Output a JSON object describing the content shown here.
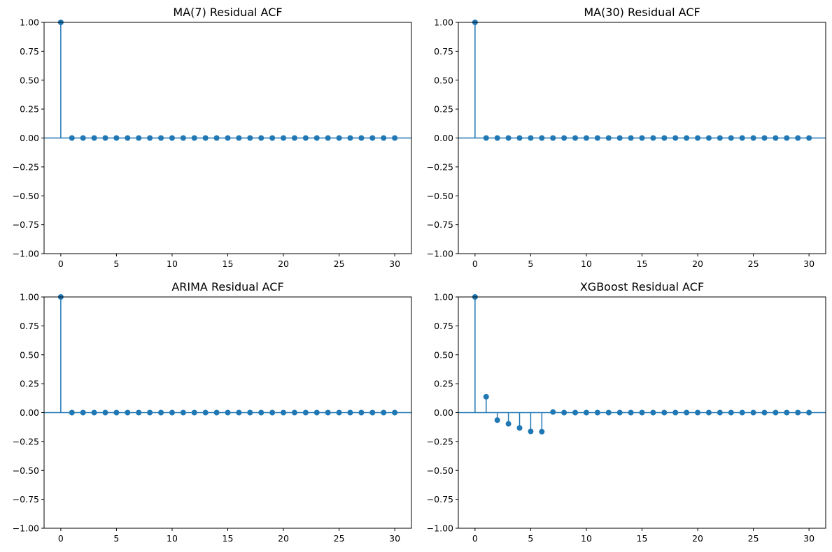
{
  "chart_data": [
    {
      "type": "stem",
      "title": "MA(7) Residual ACF",
      "xlabel": "",
      "ylabel": "",
      "x": [
        0,
        1,
        2,
        3,
        4,
        5,
        6,
        7,
        8,
        9,
        10,
        11,
        12,
        13,
        14,
        15,
        16,
        17,
        18,
        19,
        20,
        21,
        22,
        23,
        24,
        25,
        26,
        27,
        28,
        29,
        30
      ],
      "values": [
        1.0,
        0,
        0,
        0,
        0,
        0,
        0,
        0,
        0,
        0,
        0,
        0,
        0,
        0,
        0,
        0,
        0,
        0,
        0,
        0,
        0,
        0,
        0,
        0,
        0,
        0,
        0,
        0,
        0,
        0,
        0
      ],
      "xlim": [
        -1.5,
        31.5
      ],
      "ylim": [
        -1.0,
        1.0
      ],
      "xticks": [
        0,
        5,
        10,
        15,
        20,
        25,
        30
      ],
      "yticks": [
        "1.00",
        "0.75",
        "0.50",
        "0.25",
        "0.00",
        "−0.25",
        "−0.50",
        "−0.75",
        "−1.00"
      ],
      "grid": false
    },
    {
      "type": "stem",
      "title": "MA(30) Residual ACF",
      "xlabel": "",
      "ylabel": "",
      "x": [
        0,
        1,
        2,
        3,
        4,
        5,
        6,
        7,
        8,
        9,
        10,
        11,
        12,
        13,
        14,
        15,
        16,
        17,
        18,
        19,
        20,
        21,
        22,
        23,
        24,
        25,
        26,
        27,
        28,
        29,
        30
      ],
      "values": [
        1.0,
        0,
        0,
        0,
        0,
        0,
        0,
        0,
        0,
        0,
        0,
        0,
        0,
        0,
        0,
        0,
        0,
        0,
        0,
        0,
        0,
        0,
        0,
        0,
        0,
        0,
        0,
        0,
        0,
        0,
        0
      ],
      "xlim": [
        -1.5,
        31.5
      ],
      "ylim": [
        -1.0,
        1.0
      ],
      "xticks": [
        0,
        5,
        10,
        15,
        20,
        25,
        30
      ],
      "yticks": [
        "1.00",
        "0.75",
        "0.50",
        "0.25",
        "0.00",
        "−0.25",
        "−0.50",
        "−0.75",
        "−1.00"
      ],
      "grid": false
    },
    {
      "type": "stem",
      "title": "ARIMA Residual ACF",
      "xlabel": "",
      "ylabel": "",
      "x": [
        0,
        1,
        2,
        3,
        4,
        5,
        6,
        7,
        8,
        9,
        10,
        11,
        12,
        13,
        14,
        15,
        16,
        17,
        18,
        19,
        20,
        21,
        22,
        23,
        24,
        25,
        26,
        27,
        28,
        29,
        30
      ],
      "values": [
        1.0,
        0,
        0,
        0,
        0,
        0,
        0,
        0,
        0,
        0,
        0,
        0,
        0,
        0,
        0,
        0,
        0,
        0,
        0,
        0,
        0,
        0,
        0,
        0,
        0,
        0,
        0,
        0,
        0,
        0,
        0
      ],
      "xlim": [
        -1.5,
        31.5
      ],
      "ylim": [
        -1.0,
        1.0
      ],
      "xticks": [
        0,
        5,
        10,
        15,
        20,
        25,
        30
      ],
      "yticks": [
        "1.00",
        "0.75",
        "0.50",
        "0.25",
        "0.00",
        "−0.25",
        "−0.50",
        "−0.75",
        "−1.00"
      ],
      "grid": false
    },
    {
      "type": "stem",
      "title": "XGBoost Residual ACF",
      "xlabel": "",
      "ylabel": "",
      "x": [
        0,
        1,
        2,
        3,
        4,
        5,
        6,
        7,
        8,
        9,
        10,
        11,
        12,
        13,
        14,
        15,
        16,
        17,
        18,
        19,
        20,
        21,
        22,
        23,
        24,
        25,
        26,
        27,
        28,
        29,
        30
      ],
      "values": [
        1.0,
        0.137,
        -0.065,
        -0.097,
        -0.133,
        -0.163,
        -0.165,
        0.005,
        0,
        0,
        0,
        0,
        0,
        0,
        0,
        0,
        0,
        0,
        0,
        0,
        0,
        0,
        0,
        0,
        0,
        0,
        0,
        0,
        0,
        0,
        0
      ],
      "xlim": [
        -1.5,
        31.5
      ],
      "ylim": [
        -1.0,
        1.0
      ],
      "xticks": [
        0,
        5,
        10,
        15,
        20,
        25,
        30
      ],
      "yticks": [
        "1.00",
        "0.75",
        "0.50",
        "0.25",
        "0.00",
        "−0.25",
        "−0.50",
        "−0.75",
        "−1.00"
      ],
      "grid": false
    }
  ],
  "colors": {
    "series": "#1f77b4",
    "axis": "#000000",
    "background": "#ffffff"
  }
}
